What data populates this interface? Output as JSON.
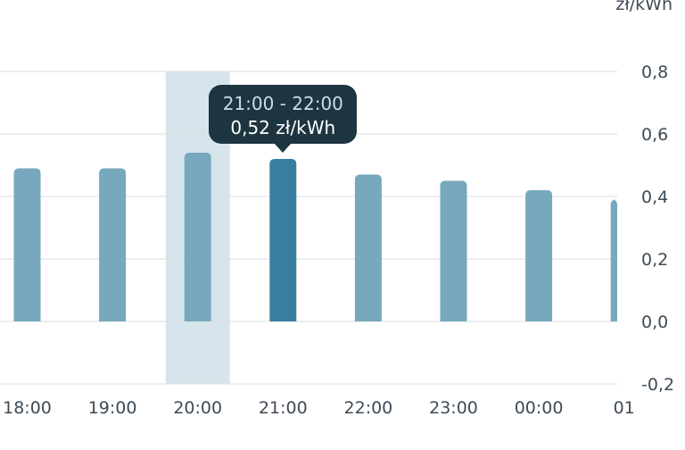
{
  "chart_data": {
    "type": "bar",
    "unit": "zł/kWh",
    "categories": [
      "18:00",
      "19:00",
      "20:00",
      "21:00",
      "22:00",
      "23:00",
      "00:00",
      "01"
    ],
    "values": [
      0.49,
      0.49,
      0.54,
      0.52,
      0.47,
      0.45,
      0.42,
      0.39
    ],
    "ylim": [
      -0.2,
      0.8
    ],
    "yticks": [
      "0,8",
      "0,6",
      "0,4",
      "0,2",
      "0,0",
      "-0,2"
    ],
    "ytick_values": [
      0.8,
      0.6,
      0.4,
      0.2,
      0.0,
      -0.2
    ],
    "grid": true,
    "hovered_category": "20:00",
    "selected_category": "21:00",
    "colors": {
      "bar": "#77a8bd",
      "bar_selected": "#3a7e9f",
      "hover_band": "#d6e5ec",
      "grid": "#d9dde0",
      "tick_text": "#3f4b56"
    }
  },
  "tooltip": {
    "range": "21:00 - 22:00",
    "value": "0,52 zł/kWh"
  }
}
